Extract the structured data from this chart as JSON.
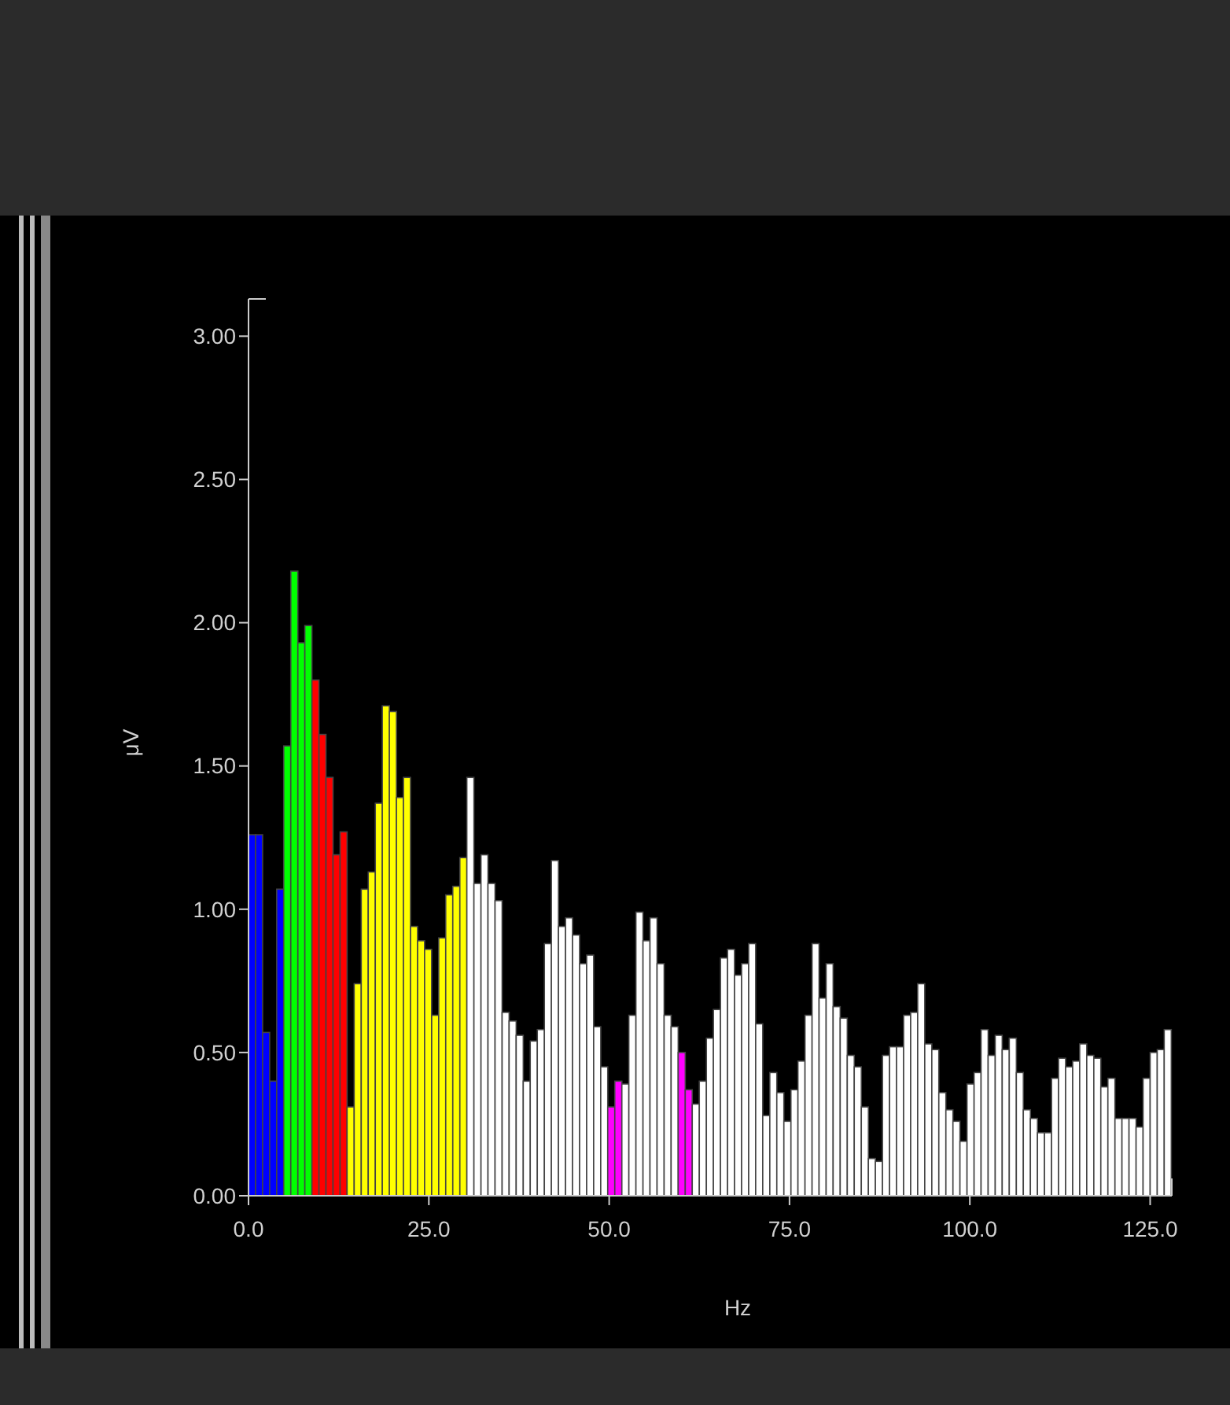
{
  "chart_data": {
    "type": "histogram",
    "xlabel": "Hz",
    "ylabel": "μV",
    "bins": [
      0,
      0.98,
      1.95,
      2.93,
      3.91,
      4.88,
      5.86,
      6.84,
      7.81,
      8.79,
      9.77,
      10.74,
      11.72,
      12.7,
      13.67,
      14.65,
      15.63,
      16.6,
      17.58,
      18.55,
      19.53,
      20.51,
      21.48,
      22.46,
      23.44,
      24.41,
      25.39,
      26.37,
      27.34,
      28.32,
      29.3,
      30.27,
      31.25,
      32.23,
      33.2,
      34.18,
      35.16,
      36.13,
      37.11,
      38.09,
      39.06,
      40.04,
      41.02,
      41.99,
      42.97,
      43.95,
      44.92,
      45.9,
      46.88,
      47.85,
      48.83,
      49.8,
      50.78,
      51.76,
      52.73,
      53.71,
      54.69,
      55.66,
      56.64,
      57.62,
      58.59,
      59.57,
      60.55,
      61.52,
      62.5,
      63.48,
      64.45,
      65.43,
      66.41,
      67.38,
      68.36,
      69.34,
      70.31,
      71.29,
      72.27,
      73.24,
      74.22,
      75.2,
      76.17,
      77.15,
      78.13,
      79.1,
      80.08,
      81.05,
      82.03,
      83.01,
      83.98,
      84.96,
      85.94,
      86.91,
      87.89,
      88.87,
      89.84,
      90.82,
      91.8,
      92.77,
      93.75,
      94.73,
      95.7,
      96.68,
      97.66,
      98.63,
      99.61,
      100.59,
      101.56,
      102.54,
      103.52,
      104.49,
      105.47,
      106.45,
      107.42,
      108.4,
      109.38,
      110.35,
      111.33,
      112.3,
      113.28,
      114.26,
      115.23,
      116.21,
      117.19,
      118.16,
      119.14,
      120.12,
      121.09,
      122.07,
      123.05,
      124.02,
      125,
      125.98,
      126.95,
      127.93
    ],
    "values": [
      1.26,
      1.26,
      0.57,
      0.4,
      1.07,
      1.57,
      2.18,
      1.93,
      1.99,
      1.8,
      1.61,
      1.46,
      1.19,
      1.27,
      0.31,
      0.74,
      1.07,
      1.13,
      1.37,
      1.71,
      1.69,
      1.39,
      1.46,
      0.94,
      0.89,
      0.86,
      0.63,
      0.9,
      1.05,
      1.08,
      1.18,
      1.46,
      1.09,
      1.19,
      1.09,
      1.03,
      0.64,
      0.61,
      0.56,
      0.4,
      0.54,
      0.58,
      0.88,
      1.17,
      0.94,
      0.97,
      0.91,
      0.81,
      0.84,
      0.59,
      0.45,
      0.31,
      0.4,
      0.39,
      0.63,
      0.99,
      0.89,
      0.97,
      0.81,
      0.63,
      0.59,
      0.5,
      0.37,
      0.32,
      0.4,
      0.55,
      0.65,
      0.83,
      0.86,
      0.77,
      0.81,
      0.88,
      0.6,
      0.28,
      0.43,
      0.36,
      0.26,
      0.37,
      0.47,
      0.63,
      0.88,
      0.69,
      0.81,
      0.66,
      0.62,
      0.49,
      0.45,
      0.31,
      0.13,
      0.12,
      0.49,
      0.52,
      0.52,
      0.63,
      0.64,
      0.74,
      0.53,
      0.51,
      0.36,
      0.3,
      0.26,
      0.19,
      0.39,
      0.43,
      0.58,
      0.49,
      0.56,
      0.51,
      0.55,
      0.43,
      0.3,
      0.27,
      0.22,
      0.22,
      0.41,
      0.48,
      0.45,
      0.47,
      0.53,
      0.49,
      0.48,
      0.38,
      0.41,
      0.27,
      0.27,
      0.27,
      0.24,
      0.41,
      0.5,
      0.51,
      0.58
    ],
    "colors": [
      "#0000ff",
      "#0000ff",
      "#0000ff",
      "#0000ff",
      "#0000ff",
      "#00ff00",
      "#00ff00",
      "#00ff00",
      "#00ff00",
      "#ff0000",
      "#ff0000",
      "#ff0000",
      "#ff0000",
      "#ff0000",
      "#ffff00",
      "#ffff00",
      "#ffff00",
      "#ffff00",
      "#ffff00",
      "#ffff00",
      "#ffff00",
      "#ffff00",
      "#ffff00",
      "#ffff00",
      "#ffff00",
      "#ffff00",
      "#ffff00",
      "#ffff00",
      "#ffff00",
      "#ffff00",
      "#ffff00",
      "#ffffff",
      "#ffffff",
      "#ffffff",
      "#ffffff",
      "#ffffff",
      "#ffffff",
      "#ffffff",
      "#ffffff",
      "#ffffff",
      "#ffffff",
      "#ffffff",
      "#ffffff",
      "#ffffff",
      "#ffffff",
      "#ffffff",
      "#ffffff",
      "#ffffff",
      "#ffffff",
      "#ffffff",
      "#ffffff",
      "#ff00ff",
      "#ff00ff",
      "#ffffff",
      "#ffffff",
      "#ffffff",
      "#ffffff",
      "#ffffff",
      "#ffffff",
      "#ffffff",
      "#ffffff",
      "#ff00ff",
      "#ff00ff",
      "#ffffff",
      "#ffffff",
      "#ffffff",
      "#ffffff",
      "#ffffff",
      "#ffffff",
      "#ffffff",
      "#ffffff",
      "#ffffff",
      "#ffffff",
      "#ffffff",
      "#ffffff",
      "#ffffff",
      "#ffffff",
      "#ffffff",
      "#ffffff",
      "#ffffff",
      "#ffffff",
      "#ffffff",
      "#ffffff",
      "#ffffff",
      "#ffffff",
      "#ffffff",
      "#ffffff",
      "#ffffff",
      "#ffffff",
      "#ffffff",
      "#ffffff",
      "#ffffff",
      "#ffffff",
      "#ffffff",
      "#ffffff",
      "#ffffff",
      "#ffffff",
      "#ffffff",
      "#ffffff",
      "#ffffff",
      "#ffffff",
      "#ffffff",
      "#ffffff",
      "#ffffff",
      "#ffffff",
      "#ffffff",
      "#ffffff",
      "#ffffff",
      "#ffffff",
      "#ffffff",
      "#ffffff",
      "#ffffff",
      "#ffffff",
      "#ffffff",
      "#ffffff",
      "#ffffff",
      "#ffffff",
      "#ffffff",
      "#ffffff",
      "#ffffff",
      "#ffffff",
      "#ffffff",
      "#ffffff",
      "#ffffff",
      "#ffffff",
      "#ffffff",
      "#ffffff",
      "#ffffff",
      "#ffffff",
      "#ffffff",
      "#ffffff"
    ],
    "xlim": [
      0,
      128
    ],
    "xticks": [
      {
        "value": 0,
        "label": "0.0"
      },
      {
        "value": 25,
        "label": "25.0"
      },
      {
        "value": 50,
        "label": "50.0"
      },
      {
        "value": 75,
        "label": "75.0"
      },
      {
        "value": 100,
        "label": "100.0"
      },
      {
        "value": 125,
        "label": "125.0"
      }
    ],
    "ylim": [
      0,
      3.13
    ],
    "yticks": [
      {
        "value": 0,
        "label": "0.00"
      },
      {
        "value": 0.5,
        "label": "0.50"
      },
      {
        "value": 1,
        "label": "1.00"
      },
      {
        "value": 1.5,
        "label": "1.50"
      },
      {
        "value": 2,
        "label": "2.00"
      },
      {
        "value": 2.5,
        "label": "2.50"
      },
      {
        "value": 3,
        "label": "3.00"
      }
    ],
    "grid": false
  }
}
